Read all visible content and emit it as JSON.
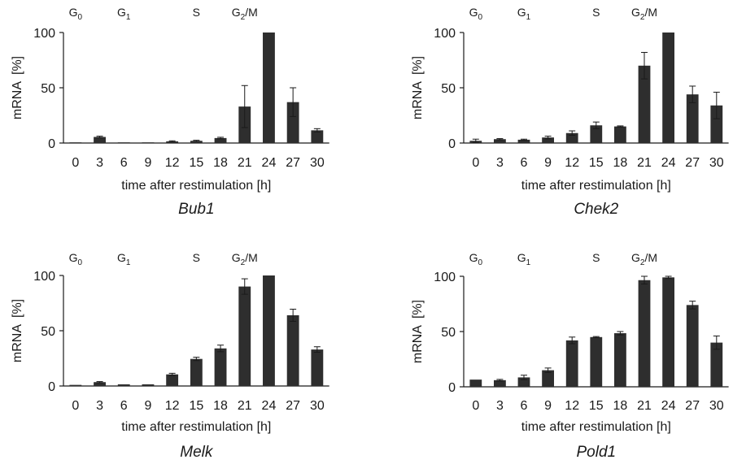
{
  "chart_data": [
    {
      "type": "bar",
      "gene": "Bub1",
      "categories": [
        "0",
        "3",
        "6",
        "9",
        "12",
        "15",
        "18",
        "21",
        "24",
        "27",
        "30"
      ],
      "values": [
        0.5,
        5.5,
        0.5,
        0.5,
        1.5,
        2,
        4.5,
        33,
        100,
        37,
        11.5
      ],
      "errors": [
        0,
        0.7,
        0,
        0,
        0.5,
        0.5,
        0.7,
        19,
        0,
        13,
        1.5
      ],
      "xlabel": "time after restimulation [h]",
      "ylabel": "mRNA  [%]",
      "ylim": [
        0,
        100
      ],
      "yticks": [
        "0",
        "50",
        "100"
      ],
      "phases": [
        {
          "base": "G",
          "sub": "0",
          "at_category": "0"
        },
        {
          "base": "G",
          "sub": "1",
          "at_category": "6"
        },
        {
          "base": "S",
          "sub": "",
          "at_category": "15"
        },
        {
          "base": "G",
          "sub": "2",
          "suffix": "/M",
          "at_category": "21"
        }
      ]
    },
    {
      "type": "bar",
      "gene": "Chek2",
      "categories": [
        "0",
        "3",
        "6",
        "9",
        "12",
        "15",
        "18",
        "21",
        "24",
        "27",
        "30"
      ],
      "values": [
        2,
        3.5,
        3,
        5,
        9,
        16,
        15,
        70,
        100,
        44,
        34
      ],
      "errors": [
        1.5,
        0.5,
        0.5,
        1.2,
        2,
        3,
        0.5,
        12,
        0,
        7.5,
        12
      ],
      "xlabel": "time after restimulation [h]",
      "ylabel": "mRNA  [%]",
      "ylim": [
        0,
        100
      ],
      "yticks": [
        "0",
        "50",
        "100"
      ],
      "phases": [
        {
          "base": "G",
          "sub": "0",
          "at_category": "0"
        },
        {
          "base": "G",
          "sub": "1",
          "at_category": "6"
        },
        {
          "base": "S",
          "sub": "",
          "at_category": "15"
        },
        {
          "base": "G",
          "sub": "2",
          "suffix": "/M",
          "at_category": "21"
        }
      ]
    },
    {
      "type": "bar",
      "gene": "Melk",
      "categories": [
        "0",
        "3",
        "6",
        "9",
        "12",
        "15",
        "18",
        "21",
        "24",
        "27",
        "30"
      ],
      "values": [
        1,
        3.5,
        1.5,
        1.5,
        10.5,
        24.5,
        34,
        90,
        100,
        64,
        33
      ],
      "errors": [
        0,
        0.5,
        0,
        0,
        1,
        1.5,
        3,
        7,
        0,
        5.5,
        2.5
      ],
      "xlabel": "time after restimulation [h]",
      "ylabel": "mRNA  [%]",
      "ylim": [
        0,
        100
      ],
      "yticks": [
        "0",
        "50",
        "100"
      ],
      "phases": [
        {
          "base": "G",
          "sub": "0",
          "at_category": "0"
        },
        {
          "base": "G",
          "sub": "1",
          "at_category": "6"
        },
        {
          "base": "S",
          "sub": "",
          "at_category": "15"
        },
        {
          "base": "G",
          "sub": "2",
          "suffix": "/M",
          "at_category": "21"
        }
      ]
    },
    {
      "type": "bar",
      "gene": "Pold1",
      "categories": [
        "0",
        "3",
        "6",
        "9",
        "12",
        "15",
        "18",
        "21",
        "24",
        "27",
        "30"
      ],
      "values": [
        6.5,
        6,
        8.5,
        15,
        42,
        45,
        48.5,
        96.5,
        99,
        74,
        40
      ],
      "errors": [
        0,
        0.7,
        2,
        2,
        3,
        0.5,
        1.5,
        3.5,
        1,
        3.5,
        6
      ],
      "xlabel": "time after restimulation [h]",
      "ylabel": "mRNA  [%]",
      "ylim": [
        0,
        100
      ],
      "yticks": [
        "0",
        "50",
        "100"
      ],
      "phases": [
        {
          "base": "G",
          "sub": "0",
          "at_category": "0"
        },
        {
          "base": "G",
          "sub": "1",
          "at_category": "6"
        },
        {
          "base": "S",
          "sub": "",
          "at_category": "15"
        },
        {
          "base": "G",
          "sub": "2",
          "suffix": "/M",
          "at_category": "21"
        }
      ]
    }
  ]
}
